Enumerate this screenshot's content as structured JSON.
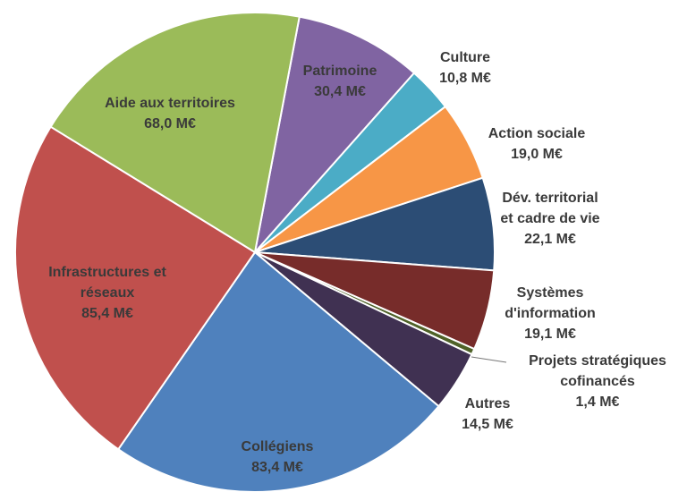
{
  "chart_data": {
    "type": "pie",
    "categories": [
      "Patrimoine",
      "Culture",
      "Action sociale",
      [
        "Dév. territorial",
        "et cadre de vie"
      ],
      [
        "Systèmes",
        "d'information"
      ],
      [
        "Projets stratégiques",
        "cofinancés"
      ],
      "Autres",
      "Collégiens",
      [
        "Infrastructures et",
        "réseaux"
      ],
      "Aide aux territoires"
    ],
    "values": [
      30.4,
      10.8,
      19.0,
      22.1,
      19.1,
      1.4,
      14.5,
      83.4,
      85.4,
      68.0
    ],
    "value_labels": [
      "30,4 M€",
      "10,8 M€",
      "19,0 M€",
      "22,1 M€",
      "19,1 M€",
      "1,4 M€",
      "14,5 M€",
      "83,4 M€",
      "85,4 M€",
      "68,0 M€"
    ],
    "colors": [
      "#8064a2",
      "#4bacc6",
      "#f79646",
      "#2c4d75",
      "#772c2a",
      "#4f6228",
      "#403152",
      "#4f81bd",
      "#c0504d",
      "#9bbb59"
    ]
  }
}
